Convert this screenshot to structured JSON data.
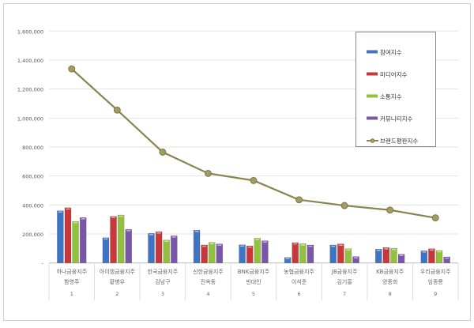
{
  "chart_data": {
    "type": "bar",
    "categories": [
      {
        "company": "하나금융지주",
        "person": "함영주",
        "rank": "1"
      },
      {
        "company": "아이엠금융지주",
        "person": "황병우",
        "rank": "2"
      },
      {
        "company": "한국금융지주",
        "person": "김남구",
        "rank": "3"
      },
      {
        "company": "신한금융지주",
        "person": "진옥동",
        "rank": "4"
      },
      {
        "company": "BNK금융지주",
        "person": "빈대인",
        "rank": "5"
      },
      {
        "company": "농협금융지주",
        "person": "이석준",
        "rank": "6"
      },
      {
        "company": "JB금융지주",
        "person": "김기홍",
        "rank": "7"
      },
      {
        "company": "KB금융지주",
        "person": "양종희",
        "rank": "8"
      },
      {
        "company": "우리금융지주",
        "person": "임종룡",
        "rank": "9"
      }
    ],
    "series": [
      {
        "name": "참여지수",
        "kind": "bar",
        "color": "#3f74c4",
        "values": [
          360000,
          174000,
          204000,
          226000,
          125000,
          38000,
          124000,
          95000,
          84000
        ]
      },
      {
        "name": "미디어지수",
        "kind": "bar",
        "color": "#c8373a",
        "values": [
          381000,
          321000,
          215000,
          124000,
          118000,
          140000,
          131000,
          106000,
          98000
        ]
      },
      {
        "name": "소통지수",
        "kind": "bar",
        "color": "#93c03f",
        "values": [
          287000,
          331000,
          158000,
          142000,
          171000,
          133000,
          98000,
          102000,
          86000
        ]
      },
      {
        "name": "커뮤니티지수",
        "kind": "bar",
        "color": "#7a56a8",
        "values": [
          313000,
          231000,
          187000,
          131000,
          153000,
          124000,
          44000,
          60000,
          42000
        ]
      },
      {
        "name": "브랜드평판지수",
        "kind": "line",
        "color": "#8a8450",
        "values": [
          1339000,
          1055000,
          765000,
          618000,
          569000,
          436000,
          396000,
          365000,
          311000
        ]
      }
    ],
    "y_ticks": [
      "-",
      "200,000",
      "400,000",
      "600,000",
      "800,000",
      "1,000,000",
      "1,200,000",
      "1,400,000",
      "1,600,000"
    ],
    "ylim": [
      0,
      1600000
    ],
    "grid": true,
    "legend_position": "top-right"
  }
}
